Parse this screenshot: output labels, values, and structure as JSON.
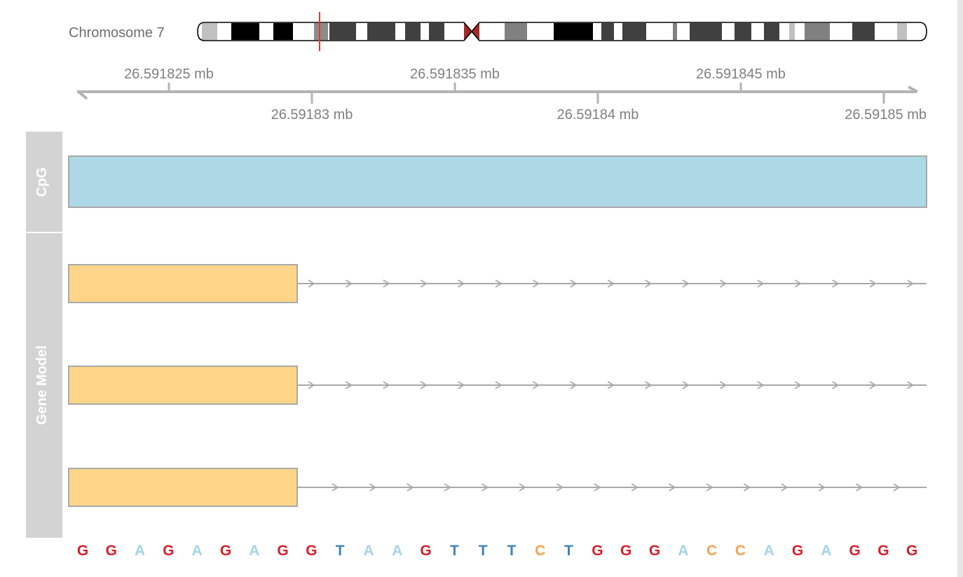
{
  "ideogram": {
    "label": "Chromosome 7",
    "band_color": "#c0c0c0",
    "centromere_color": "#a52a2a",
    "marker_color": "#e03a2f"
  },
  "genome_axis": {
    "labels_above": [
      "26.591825 mb",
      "26.591835 mb",
      "26.591845 mb"
    ],
    "labels_below": [
      "26.59183 mb",
      "26.59184 mb",
      "26.59185 mb"
    ],
    "color": "#b3b3b3"
  },
  "tracks": [
    {
      "id": "cpg",
      "label": "CpG",
      "color": "#add8e6"
    },
    {
      "id": "gene-model",
      "label": "Gene Model",
      "color": "#ffd58a",
      "transcripts": 3
    }
  ],
  "sequence": {
    "bases": [
      "G",
      "G",
      "A",
      "G",
      "A",
      "G",
      "A",
      "G",
      "G",
      "T",
      "A",
      "A",
      "G",
      "T",
      "T",
      "T",
      "C",
      "T",
      "G",
      "G",
      "G",
      "A",
      "C",
      "C",
      "A",
      "G",
      "A",
      "G",
      "G",
      "G"
    ],
    "colors": {
      "A": "#a6d3e6",
      "C": "#f7a24f",
      "G": "#d6202a",
      "T": "#3f83bf"
    }
  }
}
